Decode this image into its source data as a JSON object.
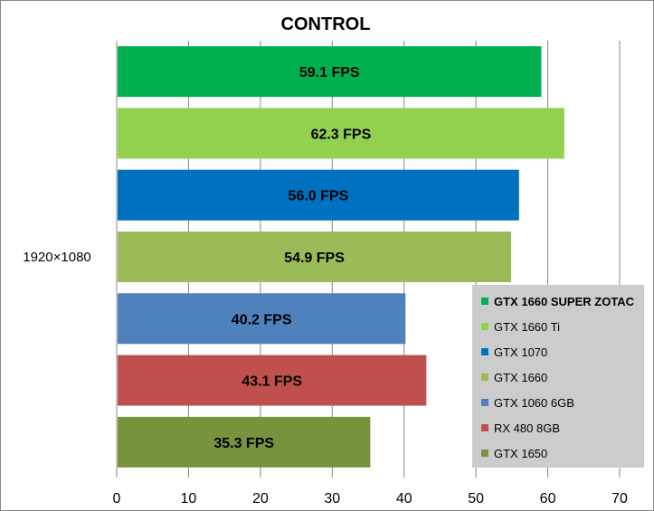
{
  "chart_data": {
    "type": "bar",
    "orientation": "horizontal",
    "title": "CONTROL",
    "categories": [
      "1920×1080"
    ],
    "xlim": [
      0,
      70
    ],
    "x_ticks": [
      "0",
      "10",
      "20",
      "30",
      "40",
      "50",
      "60",
      "70"
    ],
    "grid": true,
    "legend_position": "bottom-right",
    "series": [
      {
        "name": "GTX 1660 SUPER ZOTAC",
        "values": [
          59.1
        ],
        "label": "59.1 FPS",
        "color": "#00b050",
        "bold": true
      },
      {
        "name": "GTX 1660 Ti",
        "values": [
          62.3
        ],
        "label": "62.3 FPS",
        "color": "#92d050",
        "bold": false
      },
      {
        "name": "GTX 1070",
        "values": [
          56.0
        ],
        "label": "56.0 FPS",
        "color": "#0070c0",
        "bold": false
      },
      {
        "name": "GTX 1660",
        "values": [
          54.9
        ],
        "label": "54.9 FPS",
        "color": "#9bbb59",
        "bold": false
      },
      {
        "name": "GTX 1060 6GB",
        "values": [
          40.2
        ],
        "label": "40.2 FPS",
        "color": "#4f81bd",
        "bold": false
      },
      {
        "name": "RX 480 8GB",
        "values": [
          43.1
        ],
        "label": "43.1 FPS",
        "color": "#c0504d",
        "bold": false
      },
      {
        "name": "GTX 1650",
        "values": [
          35.3
        ],
        "label": "35.3 FPS",
        "color": "#77933c",
        "bold": false
      }
    ]
  }
}
